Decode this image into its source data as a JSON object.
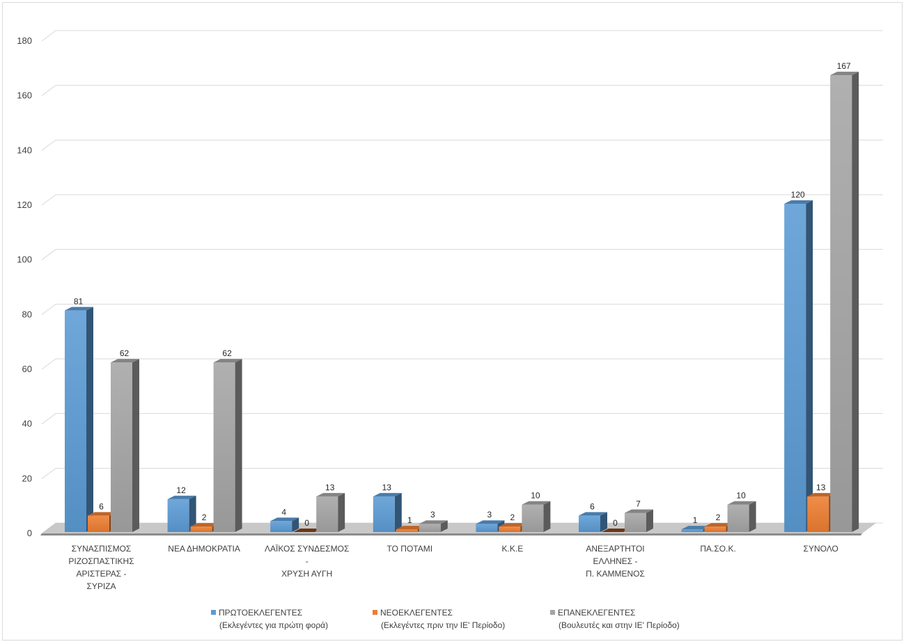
{
  "chart_data": {
    "type": "bar",
    "style": "3d-clustered-column",
    "categories": [
      [
        "ΣΥΝΑΣΠΙΣΜΟΣ",
        "ΡΙΖΟΣΠΑΣΤΙΚΗΣ",
        "ΑΡΙΣΤΕΡΑΣ -",
        "ΣΥΡΙΖΑ"
      ],
      [
        "ΝΕΑ ΔΗΜΟΚΡΑΤΙΑ"
      ],
      [
        "ΛΑΪΚΟΣ ΣΥΝΔΕΣΜΟΣ",
        "-",
        "ΧΡΥΣΗ ΑΥΓΗ"
      ],
      [
        "ΤΟ ΠΟΤΑΜΙ"
      ],
      [
        "Κ.Κ.Ε"
      ],
      [
        "ΑΝΕΞΑΡΤΗΤΟΙ",
        "ΕΛΛΗΝΕΣ -",
        "Π. ΚΑΜΜΕΝΟΣ"
      ],
      [
        "ΠΑ.ΣΟ.Κ."
      ],
      [
        "ΣΥΝΟΛΟ"
      ]
    ],
    "series": [
      {
        "name": [
          "ΠΡΩΤΟΕΚΛΕΓΕΝΤΕΣ",
          "(Εκλεγέντες για πρώτη φορά)"
        ],
        "color": "#5b9bd5",
        "values": [
          81,
          12,
          4,
          13,
          3,
          6,
          1,
          120
        ]
      },
      {
        "name": [
          "ΝΕΟΕΚΛΕΓΕΝΤΕΣ",
          "(Εκλεγέντες πριν την ΙΕ' Περίοδο)"
        ],
        "color": "#ed7d31",
        "values": [
          6,
          2,
          0,
          1,
          2,
          0,
          2,
          13
        ]
      },
      {
        "name": [
          "ΕΠΑΝΕΚΛΕΓΕΝΤΕΣ",
          "(Βουλευτές και στην ΙΕ' Περίοδο)"
        ],
        "color": "#a5a5a5",
        "values": [
          62,
          62,
          13,
          3,
          10,
          7,
          10,
          167
        ]
      }
    ],
    "ylim": [
      0,
      180
    ],
    "yticks": [
      0,
      20,
      40,
      60,
      80,
      100,
      120,
      140,
      160,
      180
    ],
    "grid": true,
    "legend_position": "bottom"
  }
}
